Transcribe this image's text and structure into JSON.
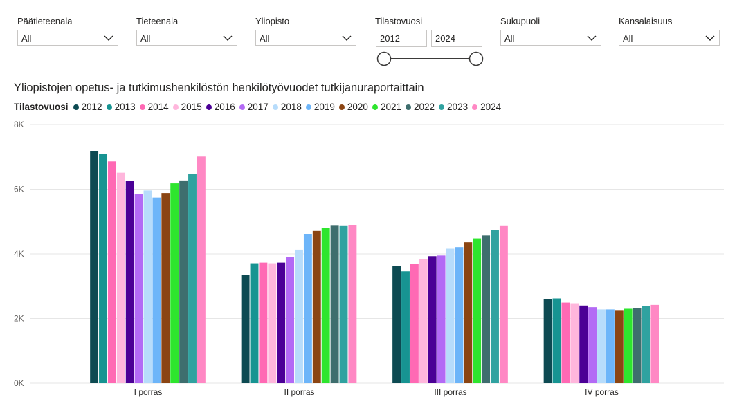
{
  "filters": {
    "paatieteenala": {
      "label": "Päätieteenala",
      "value": "All"
    },
    "tieteenala": {
      "label": "Tieteenala",
      "value": "All"
    },
    "yliopisto": {
      "label": "Yliopisto",
      "value": "All"
    },
    "tilastovuosi": {
      "label": "Tilastovuosi",
      "from": "2012",
      "to": "2024"
    },
    "sukupuoli": {
      "label": "Sukupuoli",
      "value": "All"
    },
    "kansalaisuus": {
      "label": "Kansalaisuus",
      "value": "All"
    }
  },
  "icons": {
    "dropdown": "chevron-down-icon",
    "slider_handle": "circle-handle-icon"
  },
  "chart_data": {
    "type": "bar",
    "title": "Yliopistojen opetus- ja tutkimushenkilöstön henkilötyövuodet tutkijanuraportaittain",
    "legend_title": "Tilastovuosi",
    "legend_position": "top-left",
    "grid": true,
    "categories": [
      "I porras",
      "II porras",
      "III porras",
      "IV porras"
    ],
    "ylim": [
      0,
      8000
    ],
    "yticks": [
      {
        "value": 0,
        "label": "0K"
      },
      {
        "value": 2000,
        "label": "2K"
      },
      {
        "value": 4000,
        "label": "4K"
      },
      {
        "value": 6000,
        "label": "6K"
      },
      {
        "value": 8000,
        "label": "8K"
      }
    ],
    "series": [
      {
        "name": "2012",
        "color": "#0d4a52",
        "values": [
          7180,
          3340,
          3620,
          2600
        ]
      },
      {
        "name": "2013",
        "color": "#179492",
        "values": [
          7080,
          3710,
          3460,
          2620
        ]
      },
      {
        "name": "2014",
        "color": "#ff69b4",
        "values": [
          6860,
          3730,
          3680,
          2490
        ]
      },
      {
        "name": "2015",
        "color": "#ffb6dc",
        "values": [
          6510,
          3710,
          3850,
          2470
        ]
      },
      {
        "name": "2016",
        "color": "#4b0096",
        "values": [
          6250,
          3730,
          3930,
          2400
        ]
      },
      {
        "name": "2017",
        "color": "#b36af5",
        "values": [
          5860,
          3900,
          3950,
          2350
        ]
      },
      {
        "name": "2018",
        "color": "#b7dcfb",
        "values": [
          5960,
          4130,
          4160,
          2280
        ]
      },
      {
        "name": "2019",
        "color": "#6db5f9",
        "values": [
          5740,
          4620,
          4210,
          2280
        ]
      },
      {
        "name": "2020",
        "color": "#8b4513",
        "values": [
          5880,
          4710,
          4360,
          2260
        ]
      },
      {
        "name": "2021",
        "color": "#2ee52e",
        "values": [
          6180,
          4810,
          4480,
          2300
        ]
      },
      {
        "name": "2022",
        "color": "#3e6e6e",
        "values": [
          6270,
          4870,
          4570,
          2330
        ]
      },
      {
        "name": "2023",
        "color": "#30a2a0",
        "values": [
          6480,
          4860,
          4730,
          2380
        ]
      },
      {
        "name": "2024",
        "color": "#ff88c4",
        "values": [
          7010,
          4890,
          4860,
          2420
        ]
      }
    ]
  }
}
